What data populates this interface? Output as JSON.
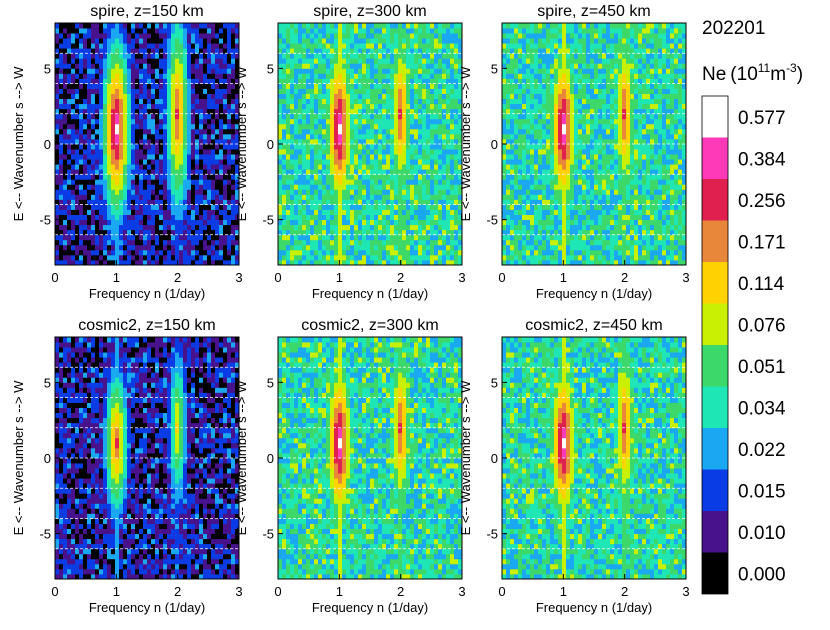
{
  "figure_id": "202201",
  "colorbar": {
    "quantity": "Ne",
    "exponent": "11",
    "unit_part": "m",
    "unit_exp": "-3",
    "levels": [
      "0.577",
      "0.384",
      "0.256",
      "0.171",
      "0.114",
      "0.076",
      "0.051",
      "0.034",
      "0.022",
      "0.015",
      "0.010",
      "0.000"
    ],
    "colors": [
      "#ffffff",
      "#ff3ab8",
      "#e0204e",
      "#e8863a",
      "#ffd200",
      "#c8f000",
      "#3cd86a",
      "#1ee6b4",
      "#1aa8f2",
      "#0a3ce6",
      "#48128c",
      "#000000"
    ]
  },
  "chart_data": [
    {
      "type": "heatmap",
      "title": "spire, z=150 km",
      "source": "spire",
      "altitude_km": 150,
      "xlabel": "Frequency n (1/day)",
      "ylabel": "E <-- Wavenumber s --> W",
      "xlim": [
        0,
        3
      ],
      "ylim": [
        -8,
        8
      ],
      "xticks": [
        "0",
        "1",
        "2",
        "3"
      ],
      "yticks": [
        "-5",
        "0",
        "5"
      ],
      "grid_y": [
        -6,
        -4,
        -2,
        0,
        2,
        4,
        6
      ],
      "peak": {
        "n": 1,
        "s": 1,
        "level": "0.577"
      },
      "secondary_peak": {
        "n": 2,
        "s": 2,
        "level": "0.256"
      }
    },
    {
      "type": "heatmap",
      "title": "spire, z=300 km",
      "source": "spire",
      "altitude_km": 300,
      "xlabel": "Frequency n (1/day)",
      "ylabel": "E <-- Wavenumber s --> W",
      "xlim": [
        0,
        3
      ],
      "ylim": [
        -8,
        8
      ],
      "xticks": [
        "0",
        "1",
        "2",
        "3"
      ],
      "yticks": [
        "-5",
        "0",
        "5"
      ],
      "grid_y": [
        -6,
        -4,
        -2,
        0,
        2,
        4,
        6
      ],
      "peak": {
        "n": 1,
        "s": 1,
        "level": "0.577"
      },
      "secondary_peak": {
        "n": 2,
        "s": 2,
        "level": "0.256"
      }
    },
    {
      "type": "heatmap",
      "title": "spire, z=450 km",
      "source": "spire",
      "altitude_km": 450,
      "xlabel": "Frequency n (1/day)",
      "ylabel": "E <-- Wavenumber s --> W",
      "xlim": [
        0,
        3
      ],
      "ylim": [
        -8,
        8
      ],
      "xticks": [
        "0",
        "1",
        "2",
        "3"
      ],
      "yticks": [
        "-5",
        "0",
        "5"
      ],
      "grid_y": [
        -6,
        -4,
        -2,
        0,
        2,
        4,
        6
      ],
      "peak": {
        "n": 1,
        "s": 1,
        "level": "0.577"
      },
      "secondary_peak": {
        "n": 2,
        "s": 2,
        "level": "0.256"
      }
    },
    {
      "type": "heatmap",
      "title": "cosmic2, z=150 km",
      "source": "cosmic2",
      "altitude_km": 150,
      "xlabel": "Frequency n (1/day)",
      "ylabel": "E <-- Wavenumber s --> W",
      "xlim": [
        0,
        3
      ],
      "ylim": [
        -8,
        8
      ],
      "xticks": [
        "0",
        "1",
        "2",
        "3"
      ],
      "yticks": [
        "-5",
        "0",
        "5"
      ],
      "grid_y": [
        -6,
        -4,
        -2,
        0,
        2,
        4,
        6
      ],
      "peak": {
        "n": 1,
        "s": 1,
        "level": "0.256"
      },
      "secondary_peak": {
        "n": 2,
        "s": 2,
        "level": "0.114"
      }
    },
    {
      "type": "heatmap",
      "title": "cosmic2, z=300 km",
      "source": "cosmic2",
      "altitude_km": 300,
      "xlabel": "Frequency n (1/day)",
      "ylabel": "E <-- Wavenumber s --> W",
      "xlim": [
        0,
        3
      ],
      "ylim": [
        -8,
        8
      ],
      "xticks": [
        "0",
        "1",
        "2",
        "3"
      ],
      "yticks": [
        "-5",
        "0",
        "5"
      ],
      "grid_y": [
        -6,
        -4,
        -2,
        0,
        2,
        4,
        6
      ],
      "peak": {
        "n": 1,
        "s": 1,
        "level": "0.577"
      },
      "secondary_peak": {
        "n": 2,
        "s": 2,
        "level": "0.256"
      }
    },
    {
      "type": "heatmap",
      "title": "cosmic2, z=450 km",
      "source": "cosmic2",
      "altitude_km": 450,
      "xlabel": "Frequency n (1/day)",
      "ylabel": "E <-- Wavenumber s --> W",
      "xlim": [
        0,
        3
      ],
      "ylim": [
        -8,
        8
      ],
      "xticks": [
        "0",
        "1",
        "2",
        "3"
      ],
      "yticks": [
        "-5",
        "0",
        "5"
      ],
      "grid_y": [
        -6,
        -4,
        -2,
        0,
        2,
        4,
        6
      ],
      "peak": {
        "n": 1,
        "s": 1,
        "level": "0.577"
      },
      "secondary_peak": {
        "n": 2,
        "s": 2,
        "level": "0.256"
      }
    }
  ]
}
